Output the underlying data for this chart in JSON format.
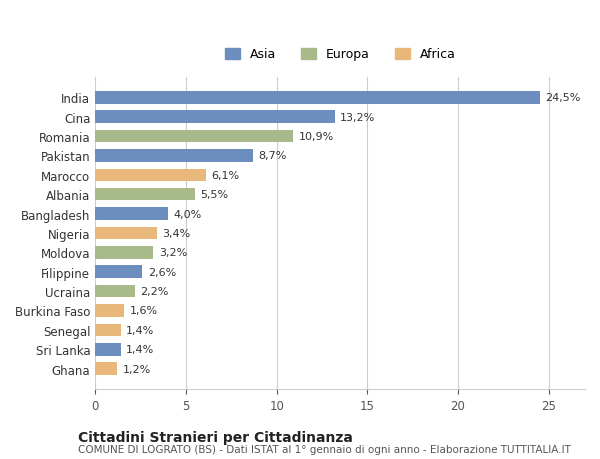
{
  "countries": [
    "India",
    "Cina",
    "Romania",
    "Pakistan",
    "Marocco",
    "Albania",
    "Bangladesh",
    "Nigeria",
    "Moldova",
    "Filippine",
    "Ucraina",
    "Burkina Faso",
    "Senegal",
    "Sri Lanka",
    "Ghana"
  ],
  "values": [
    24.5,
    13.2,
    10.9,
    8.7,
    6.1,
    5.5,
    4.0,
    3.4,
    3.2,
    2.6,
    2.2,
    1.6,
    1.4,
    1.4,
    1.2
  ],
  "continents": [
    "Asia",
    "Asia",
    "Europa",
    "Asia",
    "Africa",
    "Europa",
    "Asia",
    "Africa",
    "Europa",
    "Asia",
    "Europa",
    "Africa",
    "Africa",
    "Asia",
    "Africa"
  ],
  "label_texts": [
    "24,5%",
    "13,2%",
    "10,9%",
    "8,7%",
    "6,1%",
    "5,5%",
    "4,0%",
    "3,4%",
    "3,2%",
    "2,6%",
    "2,2%",
    "1,6%",
    "1,4%",
    "1,4%",
    "1,2%"
  ],
  "continent_colors": {
    "Asia": "#6c8ebf",
    "Europa": "#a8ba8a",
    "Africa": "#e8b87a"
  },
  "legend_labels": [
    "Asia",
    "Europa",
    "Africa"
  ],
  "legend_colors": [
    "#6c8ebf",
    "#a8ba8a",
    "#e8b87a"
  ],
  "title": "Cittadini Stranieri per Cittadinanza",
  "subtitle": "COMUNE DI LOGRATO (BS) - Dati ISTAT al 1° gennaio di ogni anno - Elaborazione TUTTITALIA.IT",
  "xlim": [
    0,
    27
  ],
  "xticks": [
    0,
    5,
    10,
    15,
    20,
    25
  ],
  "background_color": "#ffffff",
  "grid_color": "#cccccc",
  "bar_height": 0.65,
  "figsize": [
    6.0,
    4.6
  ],
  "dpi": 100
}
